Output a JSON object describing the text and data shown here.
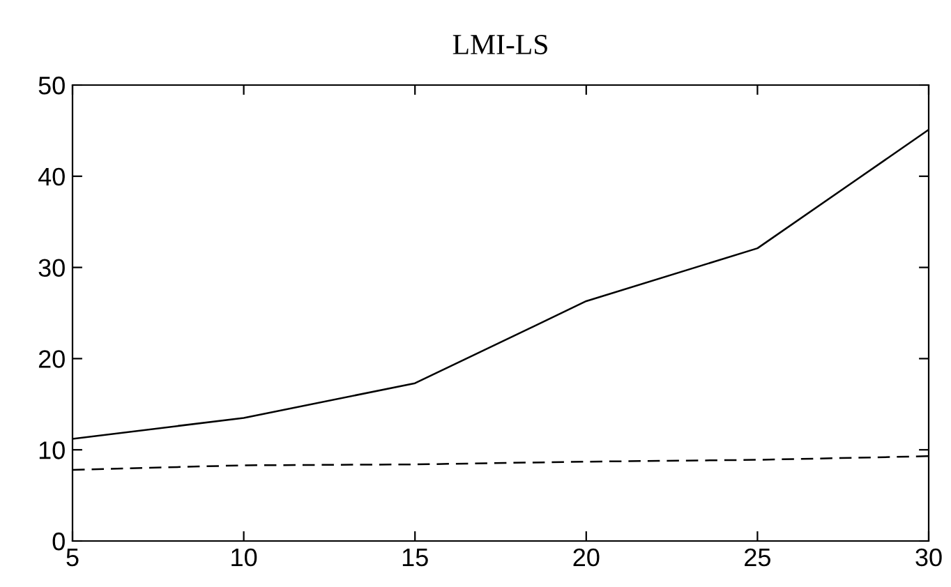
{
  "chart_data": {
    "type": "line",
    "title": "LMI-LS",
    "x": [
      5,
      10,
      15,
      20,
      25,
      30
    ],
    "series": [
      {
        "color": "#000000",
        "line_style": "solid",
        "values": [
          11.2,
          13.5,
          17.3,
          26.3,
          32.1,
          45.1
        ]
      },
      {
        "color": "#000000",
        "line_style": "dashed",
        "values": [
          7.8,
          8.3,
          8.4,
          8.7,
          8.9,
          9.3
        ]
      }
    ],
    "xlim": [
      5,
      30
    ],
    "xticks": [
      5,
      10,
      15,
      20,
      25,
      30
    ],
    "ylim": [
      0,
      50
    ],
    "yticks": [
      0,
      10,
      20,
      30,
      40,
      50
    ],
    "grid": false,
    "legend": false,
    "marker": "none"
  }
}
